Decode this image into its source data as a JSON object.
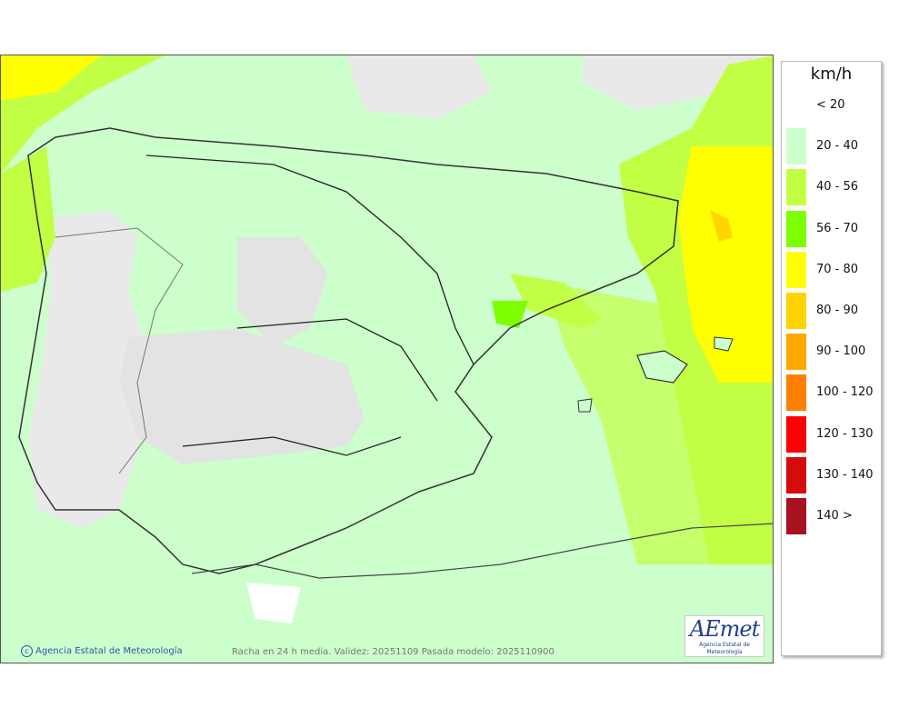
{
  "legend": {
    "unit": "km/h",
    "items": [
      {
        "label": "< 20",
        "color": "#e9e9e9"
      },
      {
        "label": "20 - 40",
        "color": "#ccffcc"
      },
      {
        "label": "40 - 56",
        "color": "#c2ff44"
      },
      {
        "label": "56 - 70",
        "color": "#7dff00"
      },
      {
        "label": "70 - 80",
        "color": "#ffff00"
      },
      {
        "label": "80 - 90",
        "color": "#ffd400"
      },
      {
        "label": "90 - 100",
        "color": "#ffa800"
      },
      {
        "label": "100 - 120",
        "color": "#ff8000"
      },
      {
        "label": "120 - 130",
        "color": "#ff0000"
      },
      {
        "label": "130 - 140",
        "color": "#d50c0c"
      },
      {
        "label": "140 >",
        "color": "#a8121f"
      }
    ]
  },
  "credit": "Agencia Estatal de Meteorología",
  "caption": "Racha en 24 h media. Validez: 20251109 Pasada modelo: 2025110900",
  "logo": {
    "word": "AEmet",
    "subtitle": "Agencia Estatal de Meteorología"
  }
}
